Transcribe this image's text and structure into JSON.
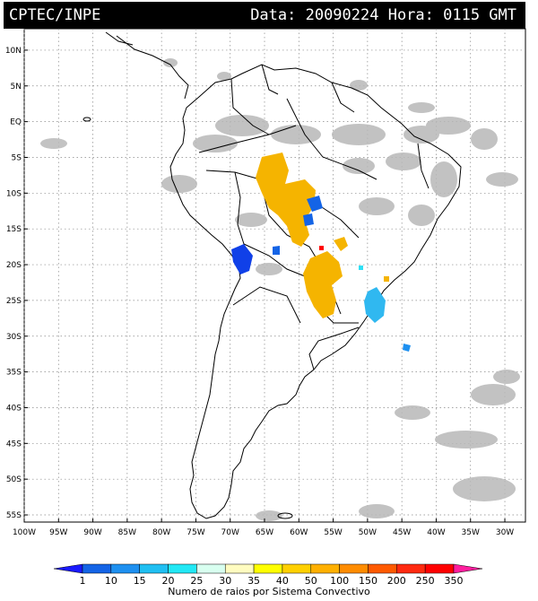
{
  "header": {
    "agency": "CPTEC/INPE",
    "datetime": "Data: 20090224 Hora: 0115 GMT"
  },
  "map": {
    "lat_labels": [
      "10N",
      "5N",
      "EQ",
      "5S",
      "10S",
      "15S",
      "20S",
      "25S",
      "30S",
      "35S",
      "40S",
      "45S",
      "50S",
      "55S"
    ],
    "lat_values": [
      10,
      5,
      0,
      -5,
      -10,
      -15,
      -20,
      -25,
      -30,
      -35,
      -40,
      -45,
      -50,
      -55
    ],
    "lon_labels": [
      "100W",
      "95W",
      "90W",
      "85W",
      "80W",
      "75W",
      "70W",
      "65W",
      "60W",
      "55W",
      "50W",
      "45W",
      "40W",
      "35W",
      "30W"
    ],
    "lon_values": [
      -100,
      -95,
      -90,
      -85,
      -80,
      -75,
      -70,
      -65,
      -60,
      -55,
      -50,
      -45,
      -40,
      -35,
      -30
    ],
    "extent": {
      "lon_min": -100,
      "lon_max": -27,
      "lat_min": -56,
      "lat_max": 13
    }
  },
  "colorbar": {
    "ticks": [
      "1",
      "10",
      "15",
      "20",
      "25",
      "30",
      "35",
      "40",
      "50",
      "100",
      "150",
      "200",
      "250",
      "350"
    ],
    "colors": [
      "#1a1aff",
      "#1464e6",
      "#1e90f0",
      "#20bff2",
      "#22e8f5",
      "#d8fff0",
      "#fffcc0",
      "#ffff00",
      "#ffd000",
      "#ffb000",
      "#ff8c00",
      "#ff5a00",
      "#ff2a10",
      "#ff0000",
      "#ff1e9e"
    ],
    "caption": "Numero de raios por Sistema Convectivo"
  },
  "systems_colors": {
    "orange": "#f5b400",
    "blue": "#1040e8",
    "cyan": "#30b8f0",
    "red": "#ff0000",
    "cloud": "#b8b8b8"
  }
}
